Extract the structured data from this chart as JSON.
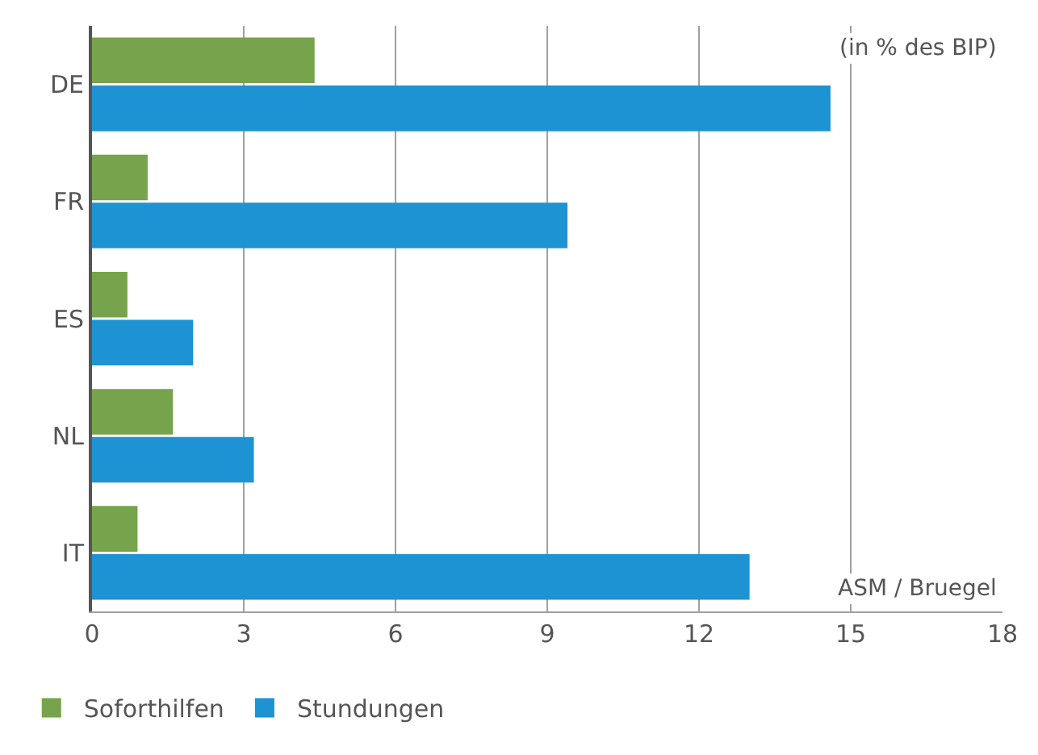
{
  "chart_data": {
    "type": "bar",
    "orientation": "horizontal",
    "categories": [
      "DE",
      "FR",
      "ES",
      "NL",
      "IT"
    ],
    "series": [
      {
        "name": "Soforthilfen",
        "color": "#76a34b",
        "values": [
          4.4,
          1.1,
          0.7,
          1.6,
          0.9
        ]
      },
      {
        "name": "Stundungen",
        "color": "#1e93d3",
        "values": [
          14.6,
          9.4,
          2.0,
          3.2,
          13.0
        ]
      }
    ],
    "xlim": [
      0,
      18
    ],
    "xticks": [
      0,
      3,
      6,
      9,
      12,
      15,
      18
    ],
    "grid": "x",
    "legend": "bottom left",
    "annotations": [
      "(in % des BIP)",
      "ASM / Bruegel"
    ]
  }
}
